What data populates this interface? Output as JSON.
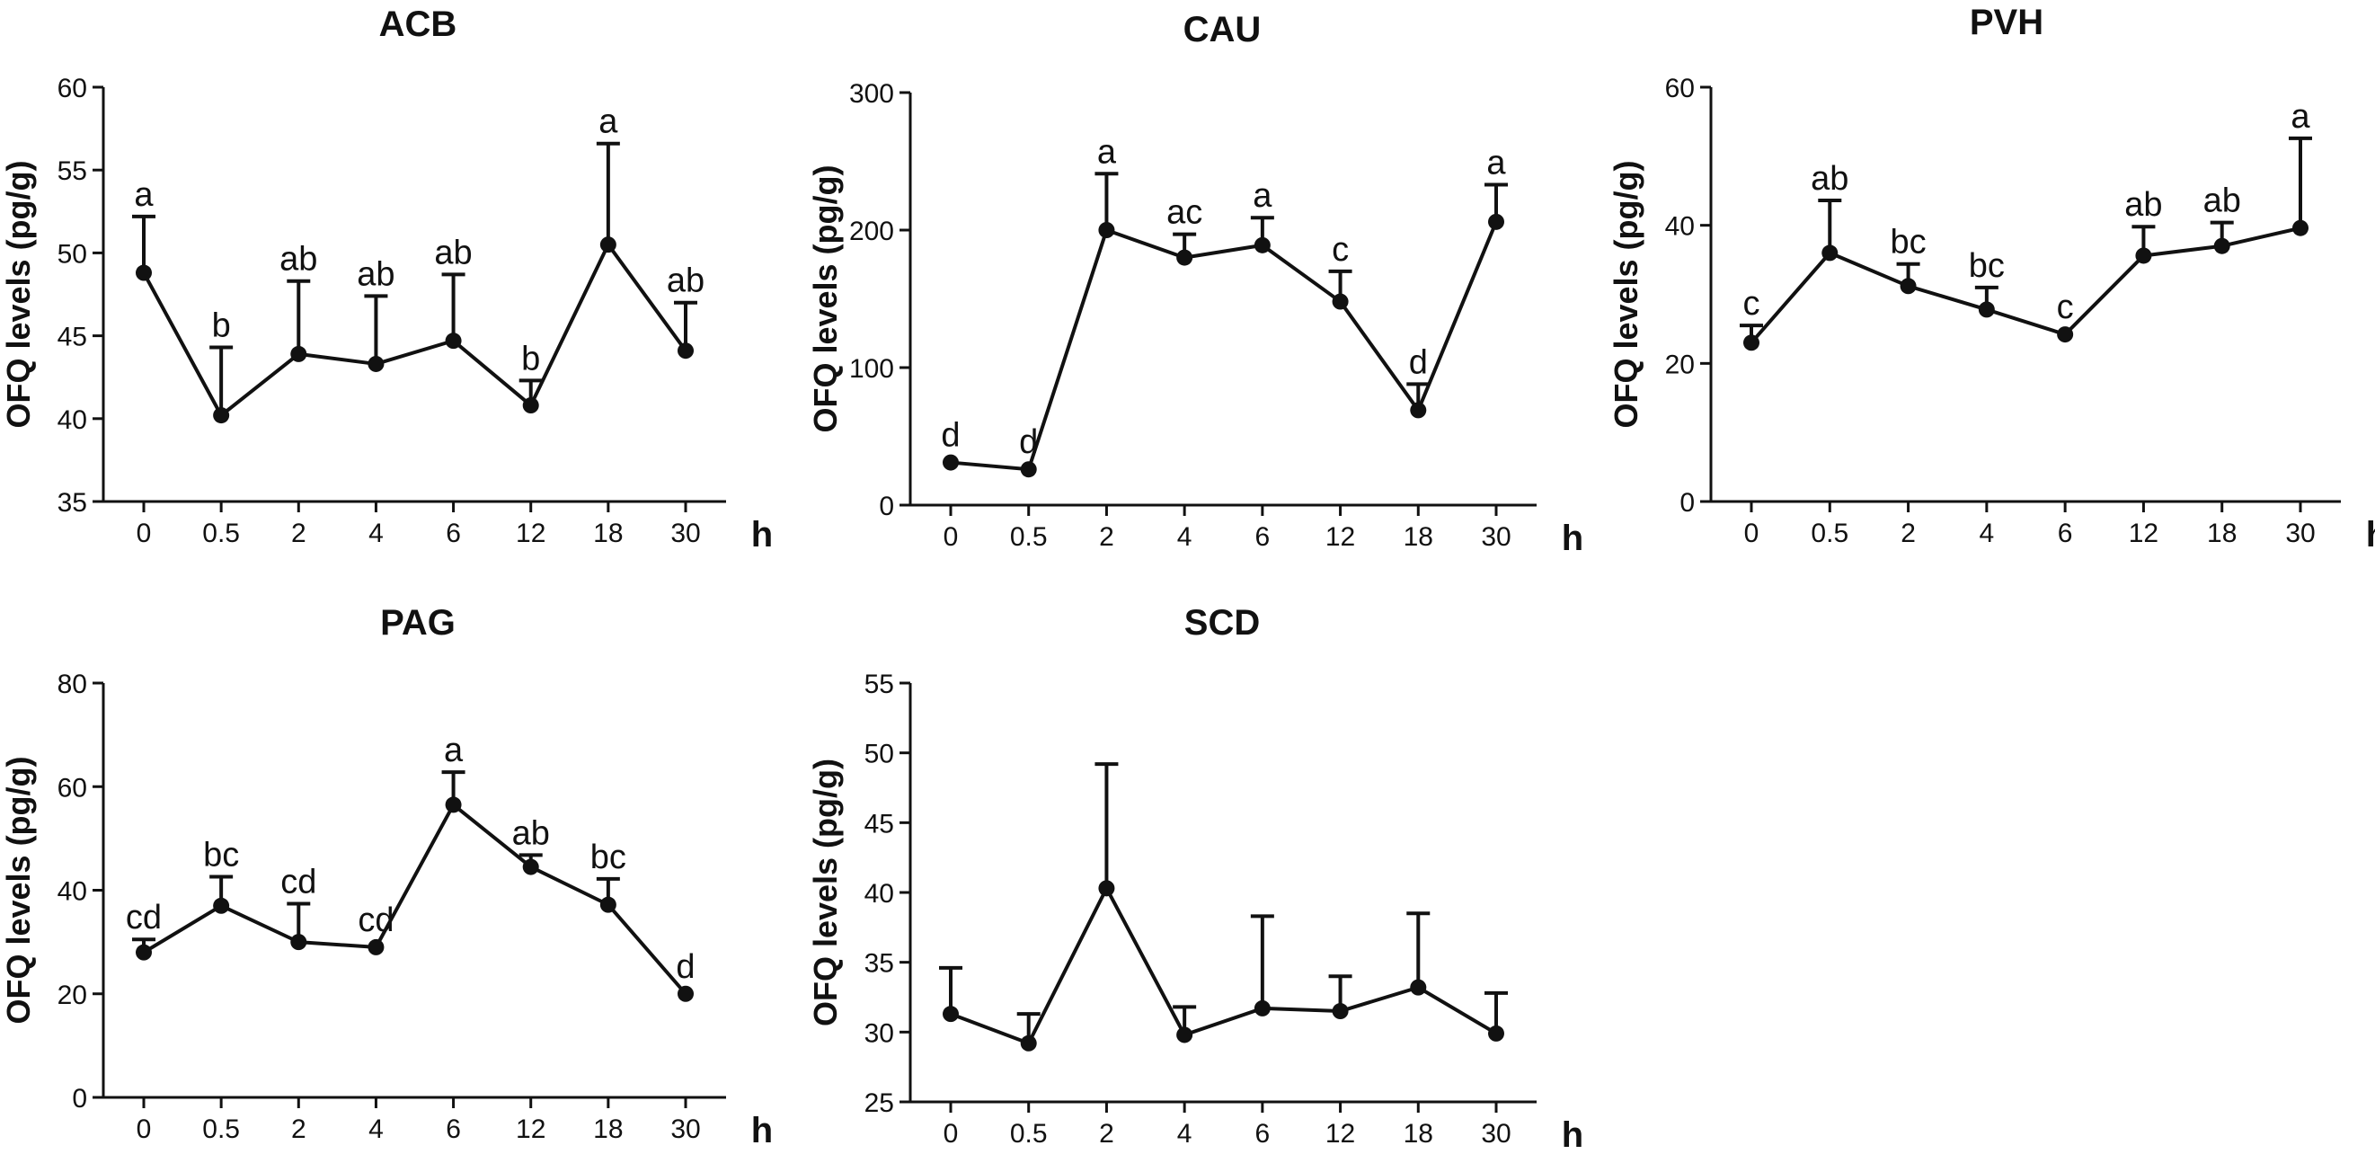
{
  "chart_data": [
    {
      "type": "line",
      "title": "ACB",
      "ylabel": "OFQ levels (pg/g)",
      "xunit": "h",
      "ylim": [
        35,
        60
      ],
      "yticks": [
        35,
        40,
        45,
        50,
        55,
        60
      ],
      "categories": [
        "0",
        "0.5",
        "2",
        "4",
        "6",
        "12",
        "18",
        "30"
      ],
      "values": [
        48.8,
        40.2,
        43.9,
        43.3,
        44.7,
        40.8,
        50.5,
        44.1
      ],
      "error_upper": [
        52.2,
        44.3,
        48.3,
        47.4,
        48.7,
        42.3,
        56.6,
        47.0
      ],
      "labels": [
        "a",
        "b",
        "ab",
        "ab",
        "ab",
        "b",
        "a",
        "ab"
      ]
    },
    {
      "type": "line",
      "title": "CAU",
      "ylabel": "OFQ levels (pg/g)",
      "xunit": "h",
      "ylim": [
        0,
        300
      ],
      "yticks": [
        0,
        100,
        200,
        300
      ],
      "categories": [
        "0",
        "0.5",
        "2",
        "4",
        "6",
        "12",
        "18",
        "30"
      ],
      "values": [
        31,
        26,
        200,
        180,
        189,
        148,
        69,
        206
      ],
      "error_upper": [
        null,
        null,
        241,
        197,
        209,
        170,
        88,
        233
      ],
      "labels": [
        "d",
        "d",
        "a",
        "ac",
        "a",
        "c",
        "d",
        "a"
      ]
    },
    {
      "type": "line",
      "title": "PVH",
      "ylabel": "OFQ levels (pg/g)",
      "xunit": "h",
      "ylim": [
        0,
        60
      ],
      "yticks": [
        0,
        20,
        40,
        60
      ],
      "categories": [
        "0",
        "0.5",
        "2",
        "4",
        "6",
        "12",
        "18",
        "30"
      ],
      "values": [
        23,
        36,
        31.2,
        27.8,
        24.2,
        35.6,
        37,
        39.6
      ],
      "error_upper": [
        25.5,
        43.6,
        34.4,
        31,
        null,
        39.8,
        40.4,
        52.6
      ],
      "labels": [
        "c",
        "ab",
        "bc",
        "bc",
        "c",
        "ab",
        "ab",
        "a"
      ]
    },
    {
      "type": "line",
      "title": "PAG",
      "ylabel": "OFQ levels (pg/g)",
      "xunit": "h",
      "ylim": [
        0,
        80
      ],
      "yticks": [
        0,
        20,
        40,
        60,
        80
      ],
      "categories": [
        "0",
        "0.5",
        "2",
        "4",
        "6",
        "12",
        "18",
        "30"
      ],
      "values": [
        28,
        37,
        30,
        29,
        56.5,
        44.5,
        37.2,
        20
      ],
      "error_upper": [
        30.5,
        42.6,
        37.4,
        null,
        62.8,
        46.8,
        42.2,
        null
      ],
      "labels": [
        "cd",
        "bc",
        "cd",
        "cd",
        "a",
        "ab",
        "bc",
        "d"
      ]
    },
    {
      "type": "line",
      "title": "SCD",
      "ylabel": "OFQ levels (pg/g)",
      "xunit": "h",
      "ylim": [
        25,
        55
      ],
      "yticks": [
        25,
        30,
        35,
        40,
        45,
        50,
        55
      ],
      "categories": [
        "0",
        "0.5",
        "2",
        "4",
        "6",
        "12",
        "18",
        "30"
      ],
      "values": [
        31.3,
        29.2,
        40.3,
        29.8,
        31.7,
        31.5,
        33.2,
        29.9
      ],
      "error_upper": [
        34.6,
        31.3,
        49.2,
        31.8,
        38.3,
        34.0,
        38.5,
        32.8
      ],
      "labels": []
    }
  ]
}
